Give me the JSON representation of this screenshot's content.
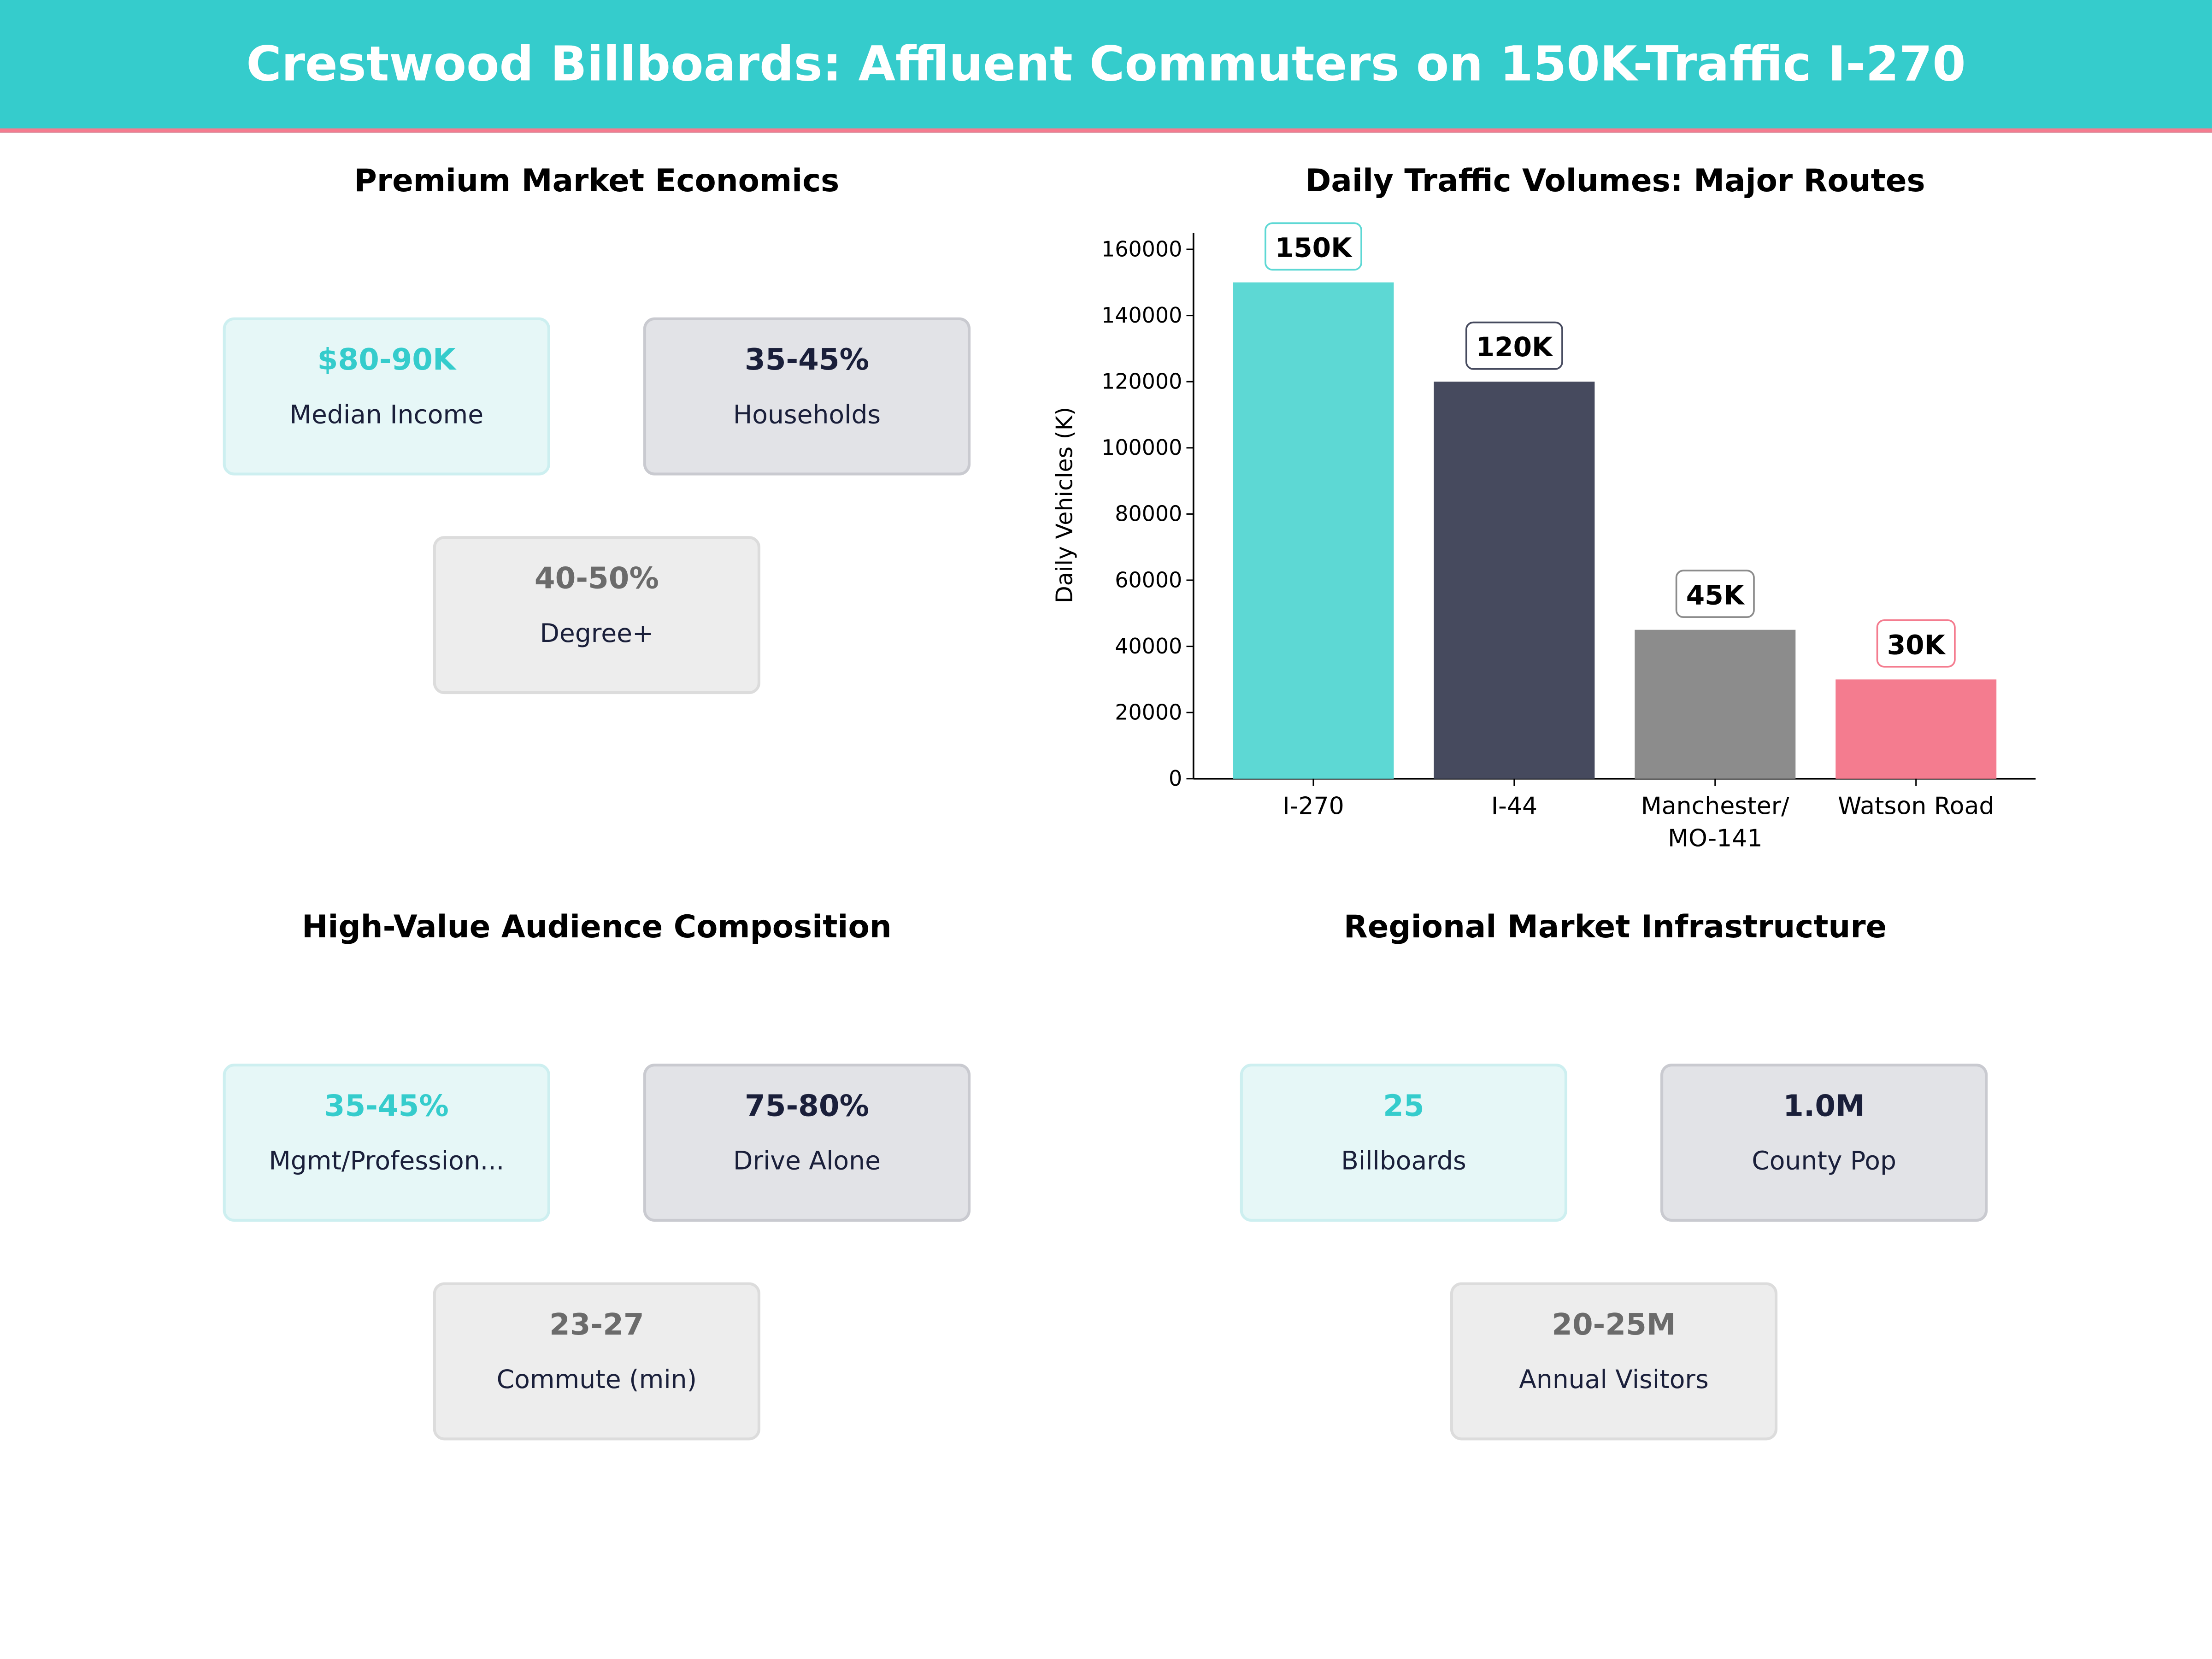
{
  "title": "Crestwood Billboards: Affluent Commuters on 150K-Traffic I-270",
  "colors": {
    "teal": "#35CCCC",
    "navy": "#1A1F3A",
    "grey": "#6B6B6B",
    "pink": "#F47C8F"
  },
  "panels": {
    "economics": {
      "title": "Premium Market Economics",
      "cards": [
        {
          "value": "$80-90K",
          "label": "Median Income"
        },
        {
          "value": "35-45%",
          "label": "Households"
        },
        {
          "value": "40-50%",
          "label": "Degree+"
        }
      ]
    },
    "audience": {
      "title": "High-Value Audience Composition",
      "cards": [
        {
          "value": "35-45%",
          "label": "Mgmt/Profession..."
        },
        {
          "value": "75-80%",
          "label": "Drive Alone"
        },
        {
          "value": "23-27",
          "label": "Commute (min)"
        }
      ]
    },
    "infrastructure": {
      "title": "Regional Market Infrastructure",
      "cards": [
        {
          "value": "25",
          "label": "Billboards"
        },
        {
          "value": "1.0M",
          "label": "County Pop"
        },
        {
          "value": "20-25M",
          "label": "Annual Visitors"
        }
      ]
    }
  },
  "chart_data": {
    "type": "bar",
    "title": "Daily Traffic Volumes: Major Routes",
    "xlabel": "",
    "ylabel": "Daily Vehicles (K)",
    "categories": [
      [
        "I-270"
      ],
      [
        "I-44"
      ],
      [
        "Manchester/",
        "MO-141"
      ],
      [
        "Watson Road"
      ]
    ],
    "values": [
      150000,
      120000,
      45000,
      30000
    ],
    "data_labels": [
      "150K",
      "120K",
      "45K",
      "30K"
    ],
    "bar_colors": [
      "#5DD8D4",
      "#464A5E",
      "#8C8C8C",
      "#F47C8F"
    ],
    "label_border_colors": [
      "#5DD8D4",
      "#464A5E",
      "#8C8C8C",
      "#F47C8F"
    ],
    "ylim": [
      0,
      165000
    ],
    "yticks": [
      0,
      20000,
      40000,
      60000,
      80000,
      100000,
      120000,
      140000,
      160000
    ],
    "grid": false
  }
}
